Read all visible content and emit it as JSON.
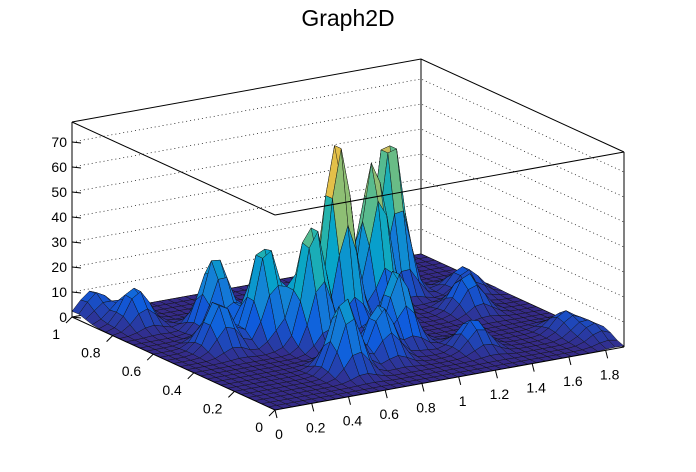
{
  "chart_data": {
    "type": "surface",
    "title": "Graph2D",
    "xlabel": "",
    "ylabel": "",
    "zlabel": "",
    "xlim": [
      0,
      1.9
    ],
    "ylim": [
      0,
      1
    ],
    "zlim": [
      0,
      78
    ],
    "x_ticks": [
      "0",
      "0.2",
      "0.4",
      "0.6",
      "0.8",
      "1",
      "1.2",
      "1.4",
      "1.6",
      "1.8"
    ],
    "y_ticks": [
      "0",
      "0.2",
      "0.4",
      "0.6",
      "0.8",
      "1"
    ],
    "z_ticks": [
      "0",
      "10",
      "20",
      "30",
      "40",
      "50",
      "60",
      "70"
    ],
    "colormap": [
      "#352a87",
      "#0f5cdd",
      "#1481d6",
      "#06a4ca",
      "#2eb7a4",
      "#87bf77",
      "#d1bb59",
      "#fec832",
      "#f9fb0e"
    ],
    "grid": true,
    "peaks": [
      {
        "x": 0.1,
        "y": 0.98,
        "z": 10
      },
      {
        "x": 0.18,
        "y": 0.85,
        "z": 15
      },
      {
        "x": 0.3,
        "y": 0.55,
        "z": 20
      },
      {
        "x": 0.45,
        "y": 0.7,
        "z": 30
      },
      {
        "x": 0.55,
        "y": 0.55,
        "z": 40
      },
      {
        "x": 0.7,
        "y": 0.45,
        "z": 50
      },
      {
        "x": 0.6,
        "y": 0.2,
        "z": 30
      },
      {
        "x": 0.95,
        "y": 0.55,
        "z": 77
      },
      {
        "x": 0.85,
        "y": 0.25,
        "z": 22
      },
      {
        "x": 1.05,
        "y": 0.35,
        "z": 30
      },
      {
        "x": 1.2,
        "y": 0.6,
        "z": 62
      },
      {
        "x": 1.45,
        "y": 0.75,
        "z": 66
      },
      {
        "x": 1.3,
        "y": 0.2,
        "z": 12
      },
      {
        "x": 1.6,
        "y": 0.5,
        "z": 15
      },
      {
        "x": 1.75,
        "y": 0.65,
        "z": 10
      },
      {
        "x": 1.8,
        "y": 0.2,
        "z": 8
      },
      {
        "x": 1.85,
        "y": 0.1,
        "z": 6
      }
    ]
  }
}
